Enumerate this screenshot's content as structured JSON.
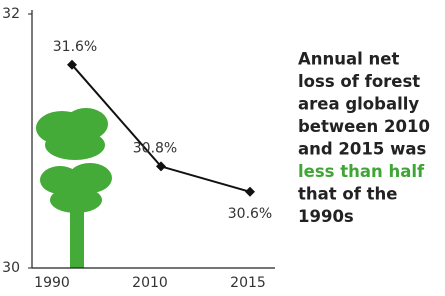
{
  "chart_data": {
    "type": "line",
    "categories": [
      "1990",
      "2010",
      "2015"
    ],
    "series": [
      {
        "color": "#111111",
        "values": [
          31.6,
          30.8,
          30.6
        ],
        "value_labels": [
          "31.6%",
          "30.8%",
          "30.6%"
        ]
      }
    ],
    "ylim": [
      30,
      32
    ],
    "yticks": [
      30,
      32
    ],
    "annotation": [
      {
        "text": "Annual net",
        "color": "#222222"
      },
      {
        "text": "loss of forest",
        "color": "#222222"
      },
      {
        "text": "area globally",
        "color": "#222222"
      },
      {
        "text": "between 2010",
        "color": "#222222"
      },
      {
        "text": "and 2015 was",
        "color": "#222222"
      },
      {
        "text": "less than half",
        "color": "#3fa535"
      },
      {
        "text": "that of the",
        "color": "#222222"
      },
      {
        "text": "1990s",
        "color": "#222222"
      }
    ]
  }
}
